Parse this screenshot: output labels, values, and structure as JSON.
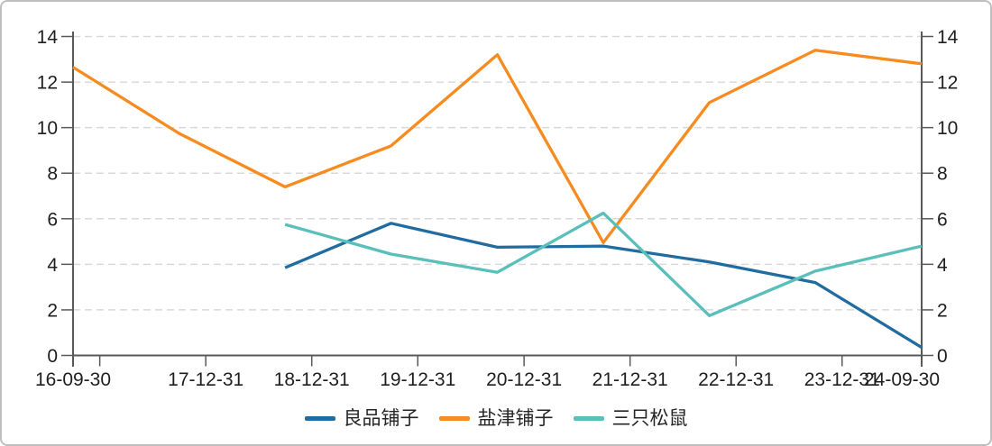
{
  "chart_data": {
    "type": "line",
    "title": "",
    "grid": "horizontal-dashed",
    "legend_position": "bottom-center",
    "x_axis": {
      "type": "date",
      "start": "2016-09-30",
      "end": "2024-09-30",
      "tick_labels": [
        "16-09-30",
        "17-12-31",
        "18-12-31",
        "19-12-31",
        "20-12-31",
        "21-12-31",
        "22-12-31",
        "23-12-31",
        "24-09-30"
      ],
      "tick_label_dates": [
        "2016-09-30",
        "2017-12-31",
        "2018-12-31",
        "2019-12-31",
        "2020-12-31",
        "2021-12-31",
        "2022-12-31",
        "2023-12-31",
        "2024-09-30"
      ],
      "minor_tick_dates": [
        "2016-12-31",
        "2017-12-31",
        "2018-12-31",
        "2019-12-31",
        "2020-12-31",
        "2021-12-31",
        "2022-12-31",
        "2023-12-31"
      ]
    },
    "y_axis": {
      "min": 0,
      "max": 14,
      "step": 2,
      "ticks": [
        0,
        2,
        4,
        6,
        8,
        10,
        12,
        14
      ],
      "dual_sided": true
    },
    "series": [
      {
        "name": "良品铺子",
        "color": "#206ca0",
        "points": [
          {
            "date": "2018-09-30",
            "value": 3.85
          },
          {
            "date": "2019-09-30",
            "value": 5.8
          },
          {
            "date": "2020-09-30",
            "value": 4.75
          },
          {
            "date": "2021-09-30",
            "value": 4.8
          },
          {
            "date": "2022-09-30",
            "value": 4.1
          },
          {
            "date": "2023-09-30",
            "value": 3.2
          },
          {
            "date": "2024-09-30",
            "value": 0.35
          }
        ]
      },
      {
        "name": "盐津铺子",
        "color": "#f68b1f",
        "points": [
          {
            "date": "2016-09-30",
            "value": 12.65
          },
          {
            "date": "2017-09-30",
            "value": 9.75
          },
          {
            "date": "2018-09-30",
            "value": 7.4
          },
          {
            "date": "2019-09-30",
            "value": 9.2
          },
          {
            "date": "2020-09-30",
            "value": 13.2
          },
          {
            "date": "2021-09-30",
            "value": 4.95
          },
          {
            "date": "2022-09-30",
            "value": 11.1
          },
          {
            "date": "2023-09-30",
            "value": 13.4
          },
          {
            "date": "2024-09-30",
            "value": 12.8
          }
        ]
      },
      {
        "name": "三只松鼠",
        "color": "#5abfba",
        "points": [
          {
            "date": "2018-09-30",
            "value": 5.75
          },
          {
            "date": "2019-09-30",
            "value": 4.45
          },
          {
            "date": "2020-09-30",
            "value": 3.65
          },
          {
            "date": "2021-09-30",
            "value": 6.25
          },
          {
            "date": "2022-09-30",
            "value": 1.75
          },
          {
            "date": "2023-09-30",
            "value": 3.7
          },
          {
            "date": "2024-09-30",
            "value": 4.8
          }
        ]
      }
    ]
  },
  "style": {
    "axis_color": "#595959",
    "grid_color": "#d9d9d9",
    "label_color": "#1f1f1f",
    "background": "#ffffff",
    "border_color": "#bfbfbf"
  }
}
